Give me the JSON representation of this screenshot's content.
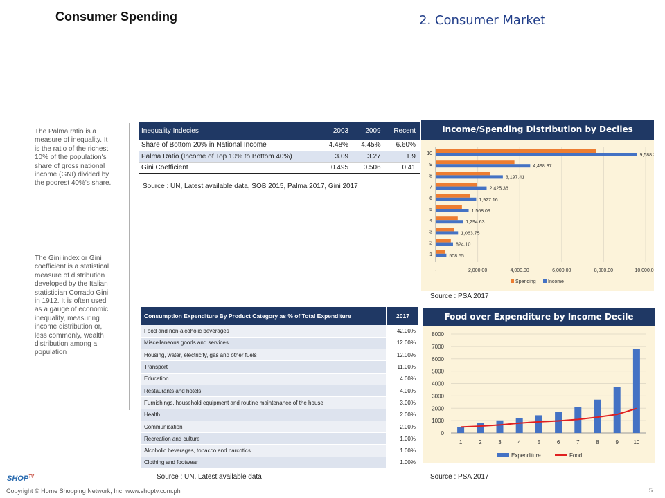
{
  "header": {
    "title": "Consumer Spending",
    "section": "2. Consumer Market"
  },
  "notes": {
    "palma": "The Palma ratio is a measure of inequality. It is the ratio of the richest 10% of the population's share of gross national income (GNI) divided by the poorest 40%'s share.",
    "gini": "The Gini index or Gini coefficient is a statistical measure of distribution developed by the Italian statistician Corrado Gini in 1912. It is often used as a gauge of economic inequality, measuring income distribution or, less commonly, wealth distribution among a population"
  },
  "inequality_table": {
    "headers": [
      "Inequality Indecies",
      "2003",
      "2009",
      "Recent"
    ],
    "rows": [
      [
        "Share of Bottom  20% in National Income",
        "4.48%",
        "4.45%",
        "6.60%"
      ],
      [
        "Palma Ratio (Income of Top 10% to Bottom 40%)",
        "3.09",
        "3.27",
        "1.9"
      ],
      [
        "Gini Coefficient",
        "0.495",
        "0.506",
        "0.41"
      ]
    ],
    "source": "Source : UN, Latest available data, SOB 2015, Palma 2017, Gini 2017"
  },
  "consumption_table": {
    "headers": [
      "Consumption Expenditure By Product Category as % of Total Expenditure",
      "2017"
    ],
    "rows": [
      [
        "Food and non-alcoholic beverages",
        "42.00%"
      ],
      [
        "Miscellaneous goods and services",
        "12.00%"
      ],
      [
        "Housing, water, electricity, gas and other fuels",
        "12.00%"
      ],
      [
        "Transport",
        "11.00%"
      ],
      [
        "Education",
        "4.00%"
      ],
      [
        "Restaurants and hotels",
        "4.00%"
      ],
      [
        "Furnishings, household equipment and routine maintenance of the house",
        "3.00%"
      ],
      [
        "Health",
        "2.00%"
      ],
      [
        "Communication",
        "2.00%"
      ],
      [
        "Recreation and culture",
        "1.00%"
      ],
      [
        "Alcoholic beverages, tobacco and narcotics",
        "1.00%"
      ],
      [
        "Clothing and footwear",
        "1.00%"
      ]
    ],
    "source": "Source : UN, Latest available data"
  },
  "chart_data": [
    {
      "type": "bar",
      "orientation": "horizontal",
      "title": "Income/Spending Distribution by Deciles",
      "categories": [
        "1",
        "2",
        "3",
        "4",
        "5",
        "6",
        "7",
        "8",
        "9",
        "10"
      ],
      "series": [
        {
          "name": "Spending",
          "values": [
            450,
            720,
            890,
            1050,
            1250,
            1650,
            1980,
            2600,
            3750,
            7650
          ],
          "color": "#ed7d31"
        },
        {
          "name": "Income",
          "values": [
            508.55,
            824.1,
            1063.75,
            1294.63,
            1568.09,
            1927.16,
            2425.36,
            3197.41,
            4498.37,
            9588.37
          ],
          "color": "#4472c4"
        }
      ],
      "data_labels": [
        "508.55",
        "824.10",
        "1,063.75",
        "1,294.63",
        "1,568.09",
        "1,927.16",
        "2,425.36",
        "3,197.41",
        "4,498.37",
        "9,588.37"
      ],
      "x_ticks": [
        "-",
        "2,000.00",
        "4,000.00",
        "6,000.00",
        "8,000.00",
        "10,000.00"
      ],
      "xlim": [
        0,
        10000
      ],
      "legend": "bottom",
      "source": "Source : PSA 2017"
    },
    {
      "type": "bar",
      "title": "Food over Expenditure by Income Decile",
      "categories": [
        "1",
        "2",
        "3",
        "4",
        "5",
        "6",
        "7",
        "8",
        "9",
        "10"
      ],
      "series": [
        {
          "name": "Expenditure",
          "type": "bar",
          "values": [
            480,
            790,
            1020,
            1190,
            1430,
            1680,
            2070,
            2700,
            3740,
            6820
          ],
          "color": "#4472c4"
        },
        {
          "name": "Food",
          "type": "line",
          "values": [
            480,
            550,
            650,
            800,
            900,
            980,
            1100,
            1280,
            1500,
            1980
          ],
          "color": "#e02020"
        }
      ],
      "y_ticks": [
        "0",
        "1000",
        "2000",
        "3000",
        "4000",
        "5000",
        "6000",
        "7000",
        "8000"
      ],
      "ylim": [
        0,
        8000
      ],
      "legend": "bottom",
      "source": "Source : PSA 2017"
    }
  ],
  "footer": {
    "logo": "SHOP",
    "logo_tv": "TV",
    "copyright": "Copyright © Home Shopping Network, Inc. www.shoptv.com.ph",
    "page": "5"
  }
}
